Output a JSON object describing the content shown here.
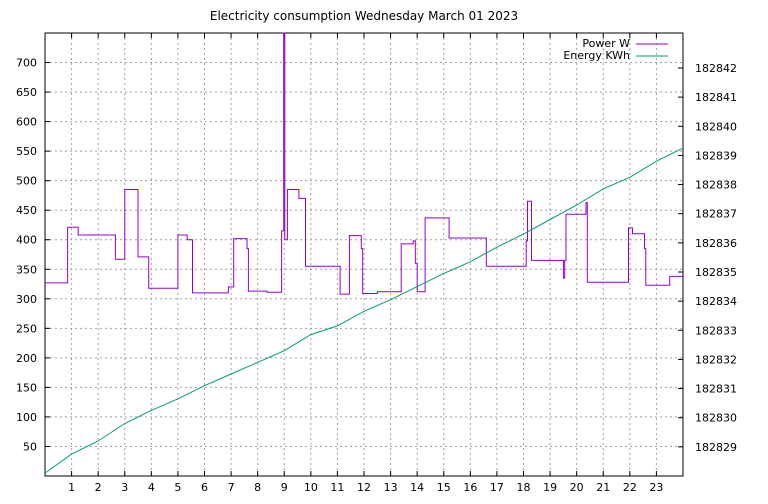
{
  "chart_data": {
    "type": "line",
    "title": "Electricity consumption Wednesday March 01 2023",
    "xlabel": "",
    "ylabel": "",
    "y2label": "",
    "xlim": [
      0,
      24
    ],
    "ylim": [
      0,
      750
    ],
    "y2lim": [
      182828.0,
      182843.2
    ],
    "x_ticks": [
      1,
      2,
      3,
      4,
      5,
      6,
      7,
      8,
      9,
      10,
      11,
      12,
      13,
      14,
      15,
      16,
      17,
      18,
      19,
      20,
      21,
      22,
      23
    ],
    "y_ticks": [
      50,
      100,
      150,
      200,
      250,
      300,
      350,
      400,
      450,
      500,
      550,
      600,
      650,
      700
    ],
    "y2_ticks": [
      182829,
      182830,
      182831,
      182832,
      182833,
      182834,
      182835,
      182836,
      182837,
      182838,
      182839,
      182840,
      182841,
      182842
    ],
    "grid": true,
    "legend_position": "top-right",
    "colors": {
      "power": "#9400d3",
      "energy": "#009e73"
    },
    "series": [
      {
        "name": "Power W",
        "axis": "y",
        "step": true,
        "points": [
          [
            0.0,
            327
          ],
          [
            0.85,
            421
          ],
          [
            1.25,
            408
          ],
          [
            2.65,
            367
          ],
          [
            3.0,
            485
          ],
          [
            3.5,
            371
          ],
          [
            3.9,
            318
          ],
          [
            5.0,
            408
          ],
          [
            5.35,
            400
          ],
          [
            5.55,
            310
          ],
          [
            6.9,
            320
          ],
          [
            7.1,
            402
          ],
          [
            7.6,
            385
          ],
          [
            7.65,
            313
          ],
          [
            8.35,
            311
          ],
          [
            8.9,
            415
          ],
          [
            8.98,
            750
          ],
          [
            9.02,
            400
          ],
          [
            9.12,
            485
          ],
          [
            9.55,
            470
          ],
          [
            9.8,
            355
          ],
          [
            11.1,
            308
          ],
          [
            11.45,
            407
          ],
          [
            11.9,
            385
          ],
          [
            11.95,
            309
          ],
          [
            12.5,
            312
          ],
          [
            13.4,
            393
          ],
          [
            13.85,
            398
          ],
          [
            13.93,
            360
          ],
          [
            14.0,
            312
          ],
          [
            14.3,
            437
          ],
          [
            15.2,
            403
          ],
          [
            16.6,
            355
          ],
          [
            18.1,
            398
          ],
          [
            18.15,
            465
          ],
          [
            18.3,
            365
          ],
          [
            19.5,
            335
          ],
          [
            19.55,
            365
          ],
          [
            19.6,
            443
          ],
          [
            20.35,
            463
          ],
          [
            20.4,
            328
          ],
          [
            21.95,
            420
          ],
          [
            22.1,
            410
          ],
          [
            22.55,
            385
          ],
          [
            22.6,
            323
          ],
          [
            23.5,
            338
          ],
          [
            24.0,
            338
          ]
        ]
      },
      {
        "name": "Energy KWh",
        "axis": "y2",
        "step": false,
        "points": [
          [
            0.0,
            182828.1
          ],
          [
            1.0,
            182828.75
          ],
          [
            2.0,
            182829.2
          ],
          [
            3.0,
            182829.8
          ],
          [
            4.0,
            182830.25
          ],
          [
            5.0,
            182830.65
          ],
          [
            6.0,
            182831.1
          ],
          [
            7.0,
            182831.5
          ],
          [
            8.0,
            182831.9
          ],
          [
            9.0,
            182832.3
          ],
          [
            10.0,
            182832.85
          ],
          [
            11.0,
            182833.15
          ],
          [
            12.0,
            182833.65
          ],
          [
            13.0,
            182834.05
          ],
          [
            14.0,
            182834.5
          ],
          [
            15.0,
            182834.95
          ],
          [
            16.0,
            182835.35
          ],
          [
            17.0,
            182835.85
          ],
          [
            18.0,
            182836.3
          ],
          [
            19.0,
            182836.8
          ],
          [
            20.0,
            182837.3
          ],
          [
            21.0,
            182837.85
          ],
          [
            22.0,
            182838.25
          ],
          [
            23.0,
            182838.8
          ],
          [
            24.0,
            182839.25
          ]
        ]
      }
    ]
  }
}
